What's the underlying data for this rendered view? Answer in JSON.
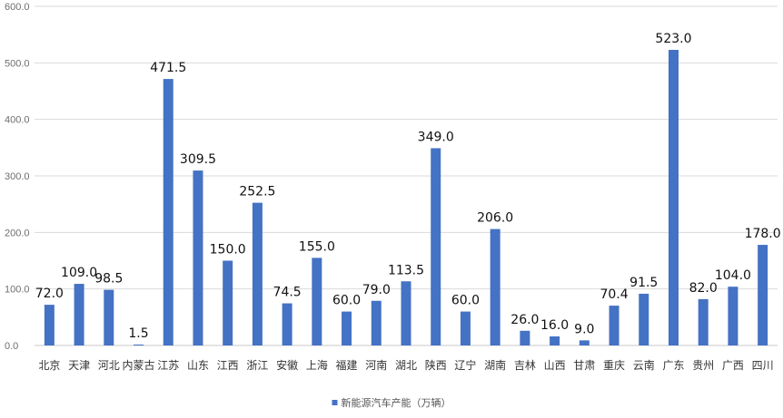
{
  "chart_data": {
    "type": "bar",
    "categories": [
      "北京",
      "天津",
      "河北",
      "内蒙古",
      "江苏",
      "山东",
      "江西",
      "浙江",
      "安徽",
      "上海",
      "福建",
      "河南",
      "湖北",
      "陕西",
      "辽宁",
      "湖南",
      "吉林",
      "山西",
      "甘肃",
      "重庆",
      "云南",
      "广东",
      "贵州",
      "广西",
      "四川"
    ],
    "series": [
      {
        "name": "新能源汽车产能（万辆）",
        "values": [
          72.0,
          109.0,
          98.5,
          1.5,
          471.5,
          309.5,
          150.0,
          252.5,
          74.5,
          155.0,
          60.0,
          79.0,
          113.5,
          349.0,
          60.0,
          206.0,
          26.0,
          16.0,
          9.0,
          70.4,
          91.5,
          523.0,
          82.0,
          104.0,
          178.0
        ],
        "labels": [
          "72.0",
          "109.0",
          "98.5",
          "1.5",
          "471.5",
          "309.5",
          "150.0",
          "252.5",
          "74.5",
          "155.0",
          "60.0",
          "79.0",
          "113.5",
          "349.0",
          "60.0",
          "206.0",
          "26.0",
          "16.0",
          "9.0",
          "70.4",
          "91.5",
          "523.0",
          "82.0",
          "104.0",
          "178.0"
        ]
      }
    ],
    "yticks": [
      "0.0",
      "100.0",
      "200.0",
      "300.0",
      "400.0",
      "500.0",
      "600.0"
    ],
    "ylim": [
      0,
      600
    ],
    "title": "",
    "xlabel": "",
    "ylabel": "",
    "grid": true,
    "legend_position": "bottom-center",
    "bar_color": "#4472C4"
  }
}
